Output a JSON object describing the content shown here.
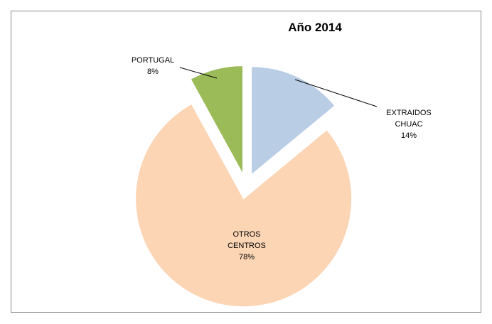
{
  "chart_data": {
    "type": "pie",
    "title": "Año 2014",
    "categories": [
      "EXTRAIDOS CHUAC",
      "OTROS CENTROS",
      "PORTUGAL"
    ],
    "values": [
      14,
      78,
      8
    ],
    "value_labels": [
      "14%",
      "78%",
      "8%"
    ],
    "colors": [
      "#b9cde5",
      "#fcd5b5",
      "#9bbb59"
    ]
  }
}
